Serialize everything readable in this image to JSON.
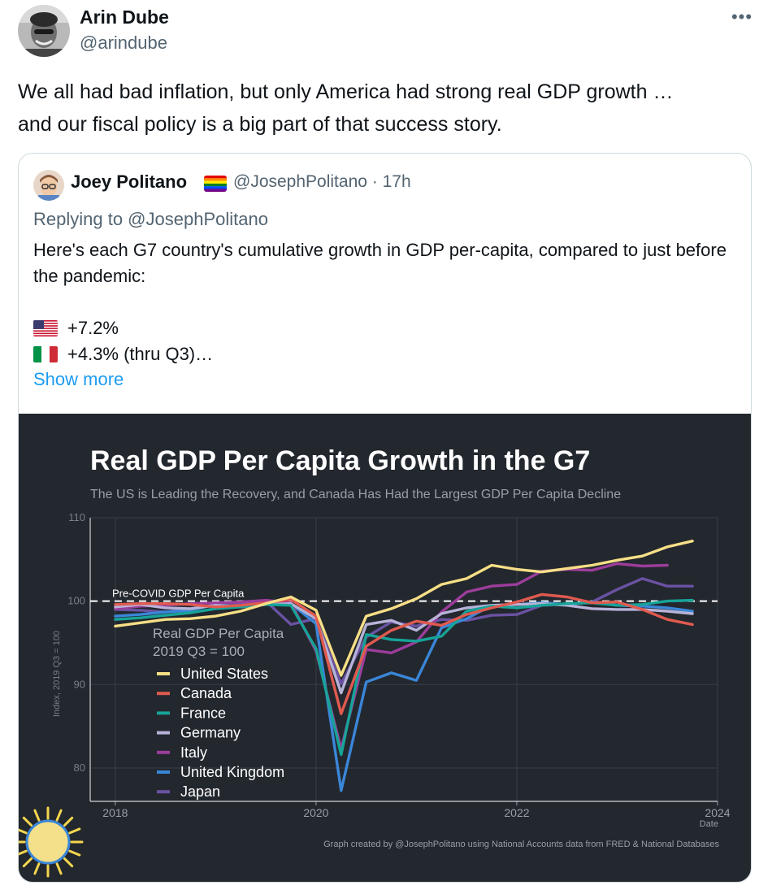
{
  "tweet": {
    "author_name": "Arin Dube",
    "author_handle": "@arindube",
    "text": "We all had bad inflation, but only America had strong real GDP growth …\nand our fiscal policy is a big part of that  success story.",
    "more_icon": "more-horizontal-icon"
  },
  "quoted": {
    "author_name": "Joey Politano",
    "author_flag": "rainbow-flag-icon",
    "handle_time": "@JosephPolitano · 17h",
    "replying_to": "Replying to @JosephPolitano",
    "text": "Here's each G7 country's cumulative growth in GDP per-capita, compared to just before the pandemic:",
    "line1": "+7.2%",
    "line2": "+4.3% (thru Q3)…",
    "show_more": "Show more"
  },
  "chart_data": {
    "type": "line",
    "title": "Real GDP Per Capita Growth in the G7",
    "subtitle": "The US is Leading the Recovery, and Canada Has Had the Largest GDP Per Capita Decline",
    "ylabel": "Index, 2019 Q3 = 100",
    "xlabel": "Date",
    "ylim": [
      76,
      110
    ],
    "xlim": [
      2017.75,
      2024
    ],
    "yticks": [
      "80",
      "90",
      "100",
      "110"
    ],
    "xticks": [
      "2018",
      "2020",
      "2022",
      "2024"
    ],
    "reference_line": {
      "value": 100,
      "label": "Pre-COVID GDP Per Capita"
    },
    "legend_title": "Real GDP Per Capita\n2019 Q3 = 100",
    "legend_position": "left-middle",
    "footer": "Graph created by @JosephPolitano using National Accounts data from FRED & National Databases",
    "x": [
      2018.0,
      2018.25,
      2018.5,
      2018.75,
      2019.0,
      2019.25,
      2019.5,
      2019.75,
      2020.0,
      2020.25,
      2020.5,
      2020.75,
      2021.0,
      2021.25,
      2021.5,
      2021.75,
      2022.0,
      2022.25,
      2022.5,
      2022.75,
      2023.0,
      2023.25,
      2023.5,
      2023.75
    ],
    "series": [
      {
        "name": "United States",
        "color": "#f6df86",
        "values": [
          97.0,
          97.4,
          97.8,
          97.9,
          98.2,
          98.8,
          99.7,
          100.5,
          98.9,
          91.1,
          98.2,
          99.1,
          100.3,
          102.0,
          102.7,
          104.3,
          103.8,
          103.5,
          103.9,
          104.3,
          104.9,
          105.4,
          106.5,
          107.2
        ]
      },
      {
        "name": "Canada",
        "color": "#e05a4f",
        "values": [
          99.6,
          99.7,
          99.7,
          99.6,
          99.3,
          99.5,
          99.8,
          100.2,
          98.2,
          86.5,
          94.6,
          96.5,
          97.6,
          97.1,
          98.4,
          99.2,
          99.9,
          100.8,
          100.5,
          99.8,
          99.9,
          99.0,
          97.8,
          97.2
        ]
      },
      {
        "name": "France",
        "color": "#17a398",
        "values": [
          97.8,
          98.0,
          98.3,
          98.6,
          99.1,
          99.3,
          99.6,
          99.5,
          94.3,
          81.6,
          96.0,
          95.4,
          95.2,
          95.8,
          98.8,
          99.4,
          99.2,
          99.5,
          99.7,
          99.8,
          99.5,
          99.6,
          100.0,
          100.1
        ]
      },
      {
        "name": "Germany",
        "color": "#b7b3d8",
        "values": [
          99.3,
          99.6,
          99.2,
          99.1,
          99.5,
          99.3,
          99.6,
          99.7,
          97.9,
          89.0,
          97.2,
          97.7,
          96.5,
          98.5,
          99.2,
          99.5,
          99.6,
          99.7,
          99.5,
          99.1,
          99.0,
          99.0,
          98.8,
          98.5
        ]
      },
      {
        "name": "Italy",
        "color": "#9c3d9b",
        "values": [
          99.1,
          99.4,
          99.5,
          99.7,
          99.8,
          99.9,
          100.1,
          99.8,
          94.0,
          82.3,
          94.2,
          93.8,
          95.1,
          98.7,
          101.1,
          101.8,
          102.0,
          103.6,
          103.8,
          103.7,
          104.5,
          104.2,
          104.3,
          null
        ]
      },
      {
        "name": "United Kingdom",
        "color": "#3a86d8",
        "values": [
          98.2,
          98.4,
          98.7,
          98.9,
          99.6,
          99.3,
          99.7,
          99.7,
          97.3,
          77.3,
          90.3,
          91.4,
          90.5,
          96.8,
          97.9,
          99.5,
          99.6,
          99.8,
          99.6,
          99.9,
          99.5,
          99.4,
          99.2,
          98.8
        ]
      },
      {
        "name": "Japan",
        "color": "#6a52a2",
        "values": [
          99.0,
          98.9,
          98.7,
          99.1,
          99.6,
          99.8,
          100.0,
          97.2,
          97.9,
          90.1,
          95.7,
          97.5,
          97.0,
          97.8,
          97.7,
          98.3,
          98.4,
          99.5,
          99.6,
          99.9,
          101.4,
          102.7,
          101.8,
          101.8
        ]
      }
    ]
  }
}
